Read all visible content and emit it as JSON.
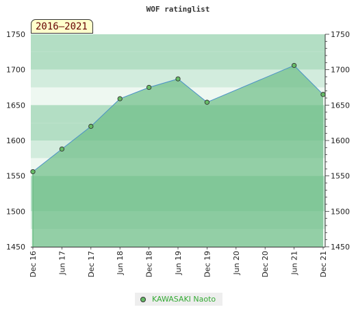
{
  "colors": {
    "band_dark": "#b3dec4",
    "band_mid": "#d2ecdd",
    "band_light": "#eef8f1",
    "fill": "#6cbd86",
    "fill_opacity": 0.7,
    "line": "#4a90c8",
    "marker": "#66bb66",
    "marker_stroke": "#333333"
  },
  "chart_data": {
    "type": "area",
    "title": "WOF ratinglist",
    "period_label": "2016–2021",
    "x": [
      "Dec 16",
      "Jun 17",
      "Dec 17",
      "Jun 18",
      "Dec 18",
      "Jun 19",
      "Dec 19",
      "Jun 20",
      "Dec 20",
      "Jun 21",
      "Dec 21"
    ],
    "ylim": [
      1450,
      1750
    ],
    "yticks": [
      1450,
      1500,
      1550,
      1600,
      1650,
      1700,
      1750
    ],
    "grid": "horizontal alternating bands",
    "legend_position": "bottom-center",
    "series": [
      {
        "name": "KAWASAKI Naoto",
        "points": [
          {
            "x": "Dec 16",
            "y": 1556
          },
          {
            "x": "Jun 17",
            "y": 1588
          },
          {
            "x": "Dec 17",
            "y": 1620
          },
          {
            "x": "Jun 18",
            "y": 1659
          },
          {
            "x": "Dec 18",
            "y": 1675
          },
          {
            "x": "Jun 19",
            "y": 1687
          },
          {
            "x": "Dec 19",
            "y": 1654
          },
          {
            "x": "Jun 21",
            "y": 1706
          },
          {
            "x": "Dec 21",
            "y": 1665
          }
        ]
      }
    ]
  }
}
